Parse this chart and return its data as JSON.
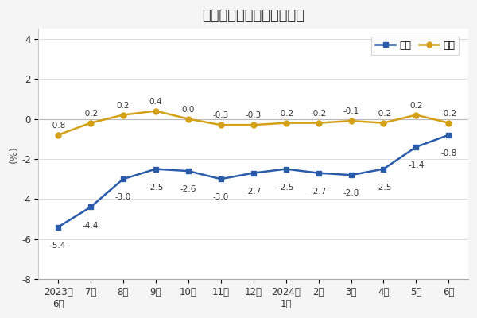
{
  "title": "工业生产者出厂价格涨跌幅",
  "ylabel": "(%)",
  "x_labels": [
    "2023年\n6月",
    "7月",
    "8月",
    "9月",
    "10月",
    "11月",
    "12月",
    "2024年\n1月",
    "2月",
    "3月",
    "4月",
    "5月",
    "6月"
  ],
  "tongbi": [
    -5.4,
    -4.4,
    -3.0,
    -2.5,
    -2.6,
    -3.0,
    -2.7,
    -2.5,
    -2.7,
    -2.8,
    -2.5,
    -1.4,
    -0.8
  ],
  "huanbi": [
    -0.8,
    -0.2,
    0.2,
    0.4,
    0.0,
    -0.3,
    -0.3,
    -0.2,
    -0.2,
    -0.1,
    -0.2,
    0.2,
    -0.2
  ],
  "tongbi_color": "#2a5caa",
  "huanbi_color": "#d4a017",
  "ylim": [
    -8.0,
    4.5
  ],
  "yticks": [
    -8.0,
    -6.0,
    -4.0,
    -2.0,
    0.0,
    2.0,
    4.0
  ],
  "legend_tongbi": "同比",
  "legend_huanbi": "环比",
  "bg_color": "#f5f5f5",
  "plot_bg_color": "#ffffff",
  "title_fontsize": 13,
  "label_fontsize": 9,
  "tick_fontsize": 8.5,
  "annot_fontsize": 7.5
}
